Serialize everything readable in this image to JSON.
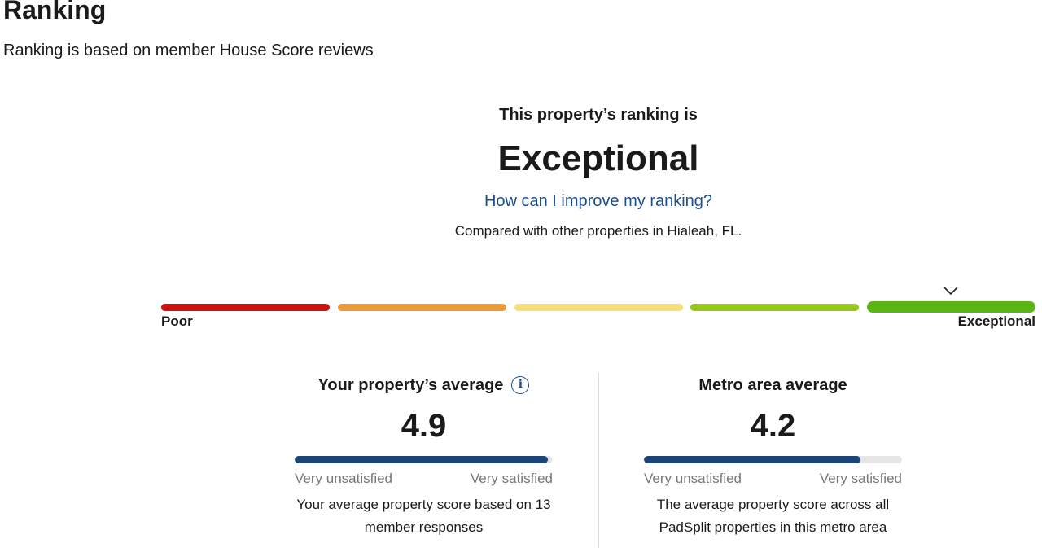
{
  "page": {
    "title": "Ranking",
    "subtitle": "Ranking is based on member House Score reviews"
  },
  "ranking": {
    "heading": "This property’s ranking is",
    "value": "Exceptional",
    "improve_link": "How can I improve my ranking?",
    "compared": "Compared with other properties in Hialeah, FL."
  },
  "scale": {
    "min_label": "Poor",
    "max_label": "Exceptional",
    "segment_colors": [
      "#cc1111",
      "#eb9a3a",
      "#f7de7a",
      "#97c71a",
      "#5bb514"
    ],
    "active_segment": 5,
    "marker_icon": "chevron-down-icon"
  },
  "property": {
    "title": "Your property’s average",
    "info_icon": "info-icon",
    "value": "4.9",
    "score": 4.9,
    "max": 5,
    "low_label": "Very unsatisfied",
    "high_label": "Very satisfied",
    "description": "Your average property score based on 13 member responses"
  },
  "metro": {
    "title": "Metro area average",
    "value": "4.2",
    "score": 4.2,
    "max": 5,
    "low_label": "Very unsatisfied",
    "high_label": "Very satisfied",
    "description": "The average property score across all PadSplit properties in this metro area"
  },
  "colors": {
    "bar_fill": "#1d4477",
    "link": "#1f4e8c"
  }
}
